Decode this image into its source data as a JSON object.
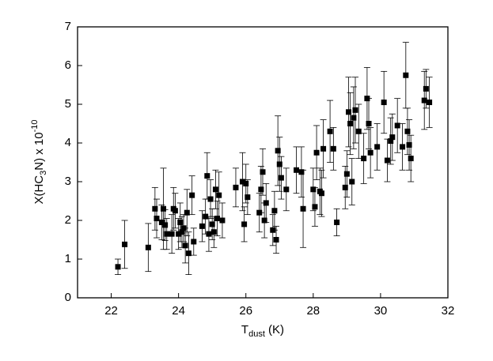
{
  "chart_data": {
    "type": "scatter",
    "xlabel": [
      "T",
      "dust",
      " (K)"
    ],
    "ylabel": [
      "X(HC",
      "3",
      "N) x 10",
      "-10"
    ],
    "xlim": [
      21,
      32
    ],
    "xticks": [
      22,
      24,
      26,
      28,
      30,
      32
    ],
    "ylim": [
      0,
      7
    ],
    "yticks": [
      0,
      1,
      2,
      3,
      4,
      5,
      6,
      7
    ],
    "series": [
      {
        "color": "#000000",
        "x": [
          22.2,
          22.4,
          23.1,
          23.3,
          23.35,
          23.5,
          23.55,
          23.6,
          23.65,
          23.8,
          23.85,
          23.9,
          24.0,
          24.05,
          24.1,
          24.15,
          24.2,
          24.25,
          24.3,
          24.4,
          24.45,
          24.7,
          24.8,
          24.85,
          24.9,
          24.95,
          25.0,
          25.05,
          25.1,
          25.15,
          25.2,
          25.3,
          25.7,
          25.9,
          25.95,
          26.0,
          26.05,
          26.4,
          26.45,
          26.5,
          26.55,
          26.6,
          26.8,
          26.85,
          26.9,
          26.95,
          27.0,
          27.05,
          27.2,
          27.5,
          27.65,
          27.7,
          28.0,
          28.05,
          28.1,
          28.2,
          28.3,
          28.25,
          28.5,
          28.6,
          28.7,
          28.95,
          29.0,
          29.05,
          29.1,
          29.15,
          29.2,
          29.25,
          29.35,
          29.5,
          29.6,
          29.65,
          29.7,
          29.9,
          30.1,
          30.2,
          30.3,
          30.35,
          30.5,
          30.65,
          30.75,
          30.8,
          30.85,
          30.9,
          31.3,
          31.35,
          31.45
        ],
        "values": [
          0.8,
          1.38,
          1.3,
          2.3,
          2.05,
          1.95,
          2.3,
          1.88,
          1.65,
          1.65,
          2.3,
          2.25,
          1.65,
          1.95,
          1.7,
          1.8,
          1.35,
          2.2,
          1.15,
          2.65,
          1.45,
          1.85,
          2.1,
          3.15,
          1.65,
          2.55,
          1.9,
          1.7,
          2.8,
          2.05,
          2.65,
          2.0,
          2.85,
          3.0,
          1.9,
          2.95,
          2.6,
          2.2,
          2.8,
          3.25,
          2.0,
          2.45,
          1.75,
          2.25,
          1.5,
          3.8,
          3.45,
          3.1,
          2.8,
          3.3,
          3.25,
          2.3,
          2.8,
          2.35,
          3.75,
          2.75,
          3.85,
          2.7,
          4.3,
          3.85,
          1.95,
          2.85,
          3.2,
          4.8,
          4.5,
          3.0,
          4.65,
          4.85,
          4.3,
          3.6,
          5.15,
          4.5,
          3.75,
          3.9,
          5.05,
          3.55,
          4.05,
          4.15,
          4.45,
          3.9,
          5.75,
          4.3,
          3.95,
          3.6,
          5.1,
          5.4,
          5.05
        ],
        "errors": [
          0.2,
          0.62,
          0.62,
          0.55,
          0.5,
          0.45,
          1.05,
          0.4,
          0.4,
          0.5,
          0.55,
          0.45,
          0.4,
          0.5,
          0.4,
          0.35,
          0.45,
          0.6,
          0.55,
          0.5,
          0.35,
          0.4,
          0.45,
          0.6,
          0.45,
          0.5,
          0.4,
          0.4,
          0.5,
          0.45,
          0.6,
          0.45,
          0.5,
          0.75,
          0.45,
          0.5,
          0.45,
          0.5,
          0.6,
          0.6,
          0.45,
          0.5,
          0.4,
          0.5,
          0.35,
          0.9,
          0.7,
          0.55,
          0.55,
          0.6,
          0.65,
          1.0,
          0.55,
          0.5,
          0.7,
          0.6,
          0.75,
          0.6,
          0.8,
          0.55,
          0.35,
          0.55,
          0.6,
          0.9,
          0.8,
          0.6,
          0.8,
          0.85,
          0.7,
          0.65,
          0.8,
          0.65,
          0.65,
          0.6,
          0.8,
          0.55,
          0.6,
          0.6,
          0.7,
          0.6,
          0.85,
          0.6,
          0.65,
          0.6,
          0.75,
          0.5,
          0.65
        ]
      }
    ]
  }
}
